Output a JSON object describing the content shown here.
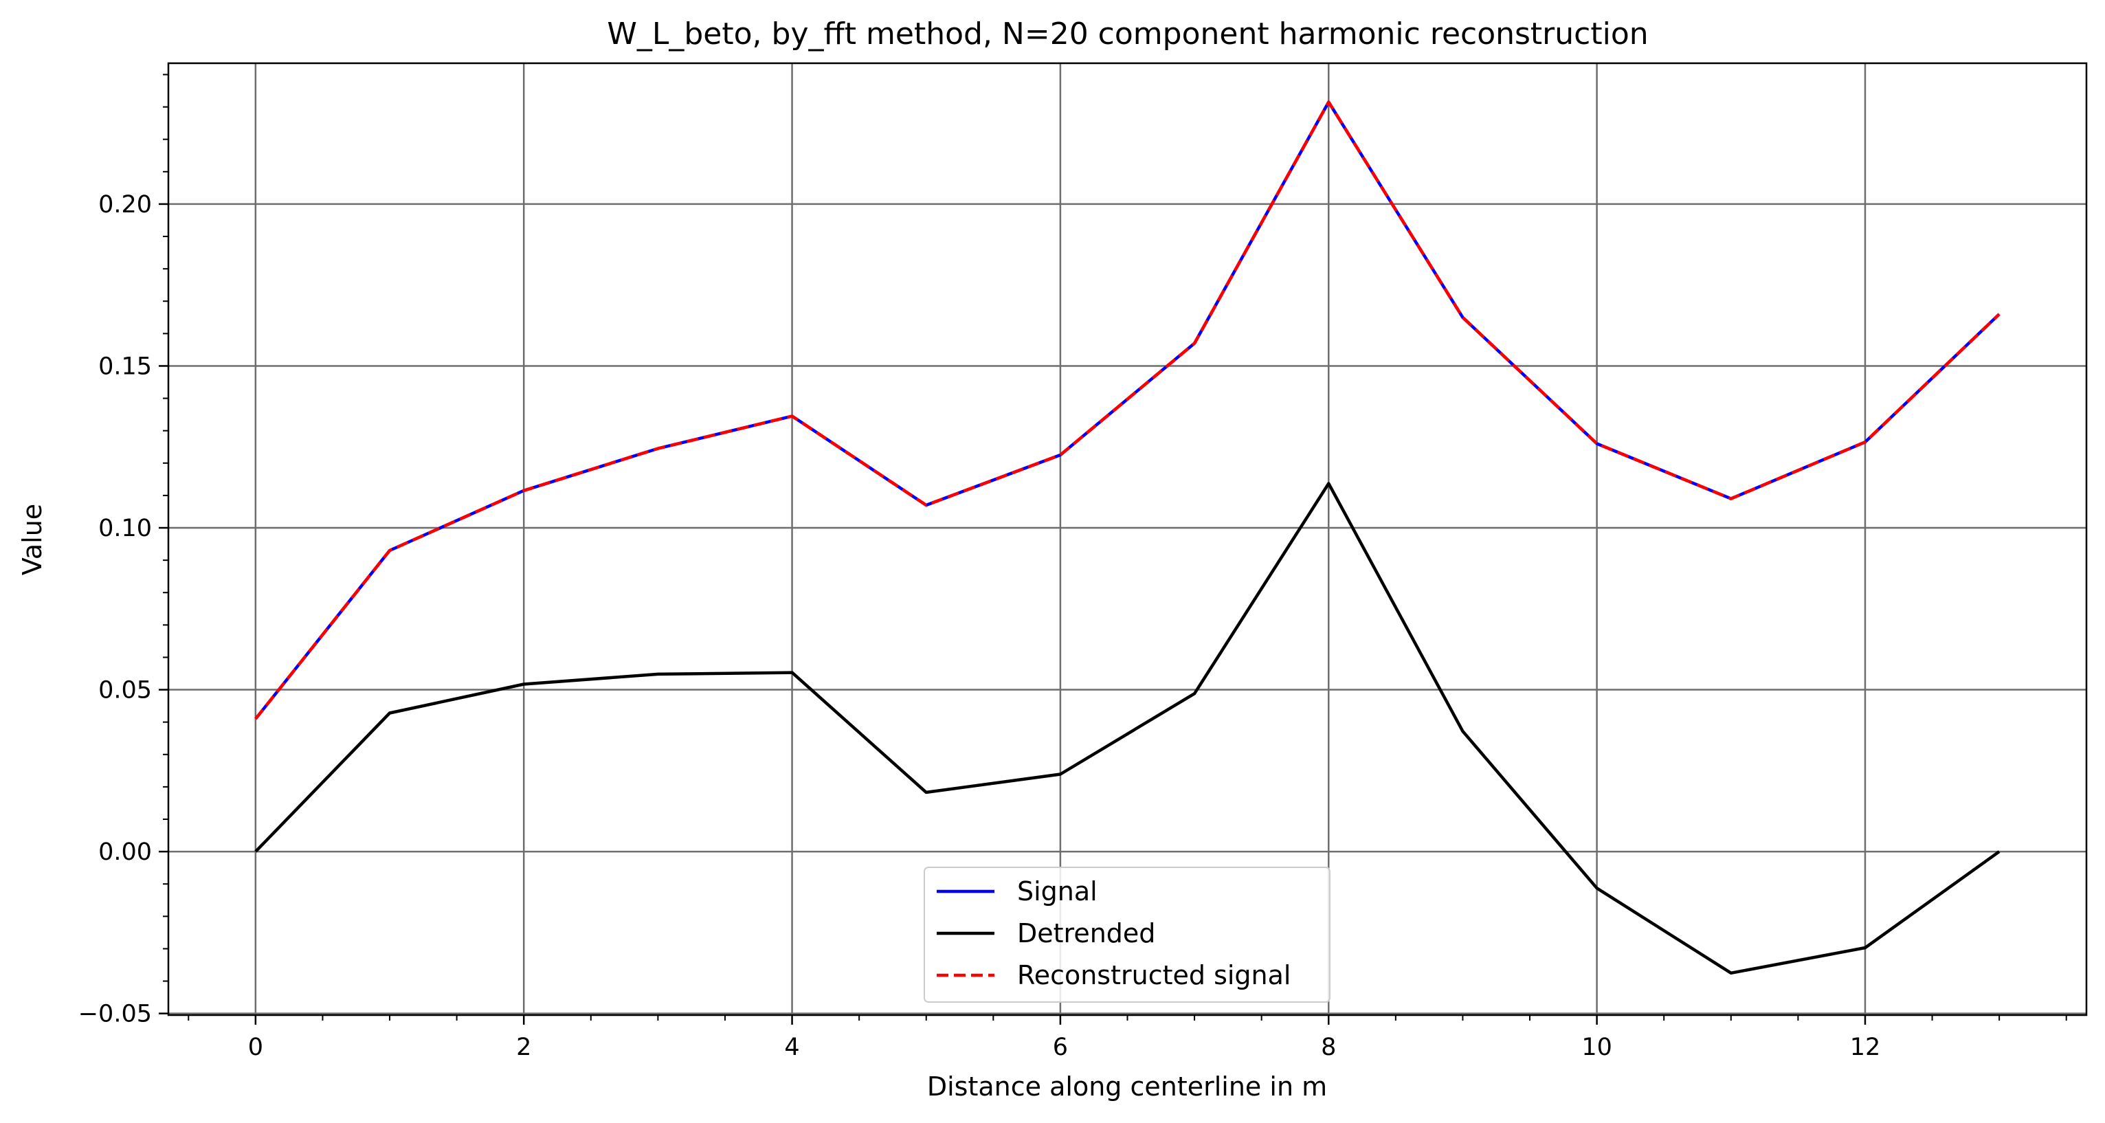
{
  "chart_data": {
    "type": "line",
    "title": "W_L_beto, by_fft method, N=20 component harmonic reconstruction",
    "xlabel": "Distance along centerline in m",
    "ylabel": "Value",
    "xlim": [
      -0.65,
      13.65
    ],
    "ylim": [
      -0.0505,
      0.2435
    ],
    "x": [
      0,
      1,
      2,
      3,
      4,
      5,
      6,
      7,
      8,
      9,
      10,
      11,
      12,
      13
    ],
    "xticks": [
      0,
      2,
      4,
      6,
      8,
      10,
      12
    ],
    "xtick_labels": [
      "0",
      "2",
      "4",
      "6",
      "8",
      "10",
      "12"
    ],
    "yticks": [
      -0.05,
      0.0,
      0.05,
      0.1,
      0.15,
      0.2
    ],
    "ytick_labels": [
      "−0.05",
      "0.00",
      "0.05",
      "0.10",
      "0.15",
      "0.20"
    ],
    "grid": true,
    "minor_ticks": true,
    "legend_position": "lower-center",
    "series": [
      {
        "name": "Signal",
        "color": "#0000ff",
        "linestyle": "solid",
        "values": [
          0.041,
          0.093,
          0.1115,
          0.1245,
          0.1345,
          0.107,
          0.1225,
          0.157,
          0.2315,
          0.165,
          0.126,
          0.109,
          0.1265,
          0.166
        ]
      },
      {
        "name": "Detrended",
        "color": "#000000",
        "linestyle": "solid",
        "values": [
          0.0,
          0.0428,
          0.0517,
          0.0548,
          0.0553,
          0.0183,
          0.0239,
          0.0488,
          0.1137,
          0.0372,
          -0.0113,
          -0.0375,
          -0.0297,
          0.0
        ]
      },
      {
        "name": "Reconstructed signal",
        "color": "#ff0000",
        "linestyle": "dashed",
        "values": [
          0.041,
          0.093,
          0.1115,
          0.1245,
          0.1345,
          0.107,
          0.1225,
          0.157,
          0.2315,
          0.165,
          0.126,
          0.109,
          0.1265,
          0.166
        ]
      }
    ]
  }
}
